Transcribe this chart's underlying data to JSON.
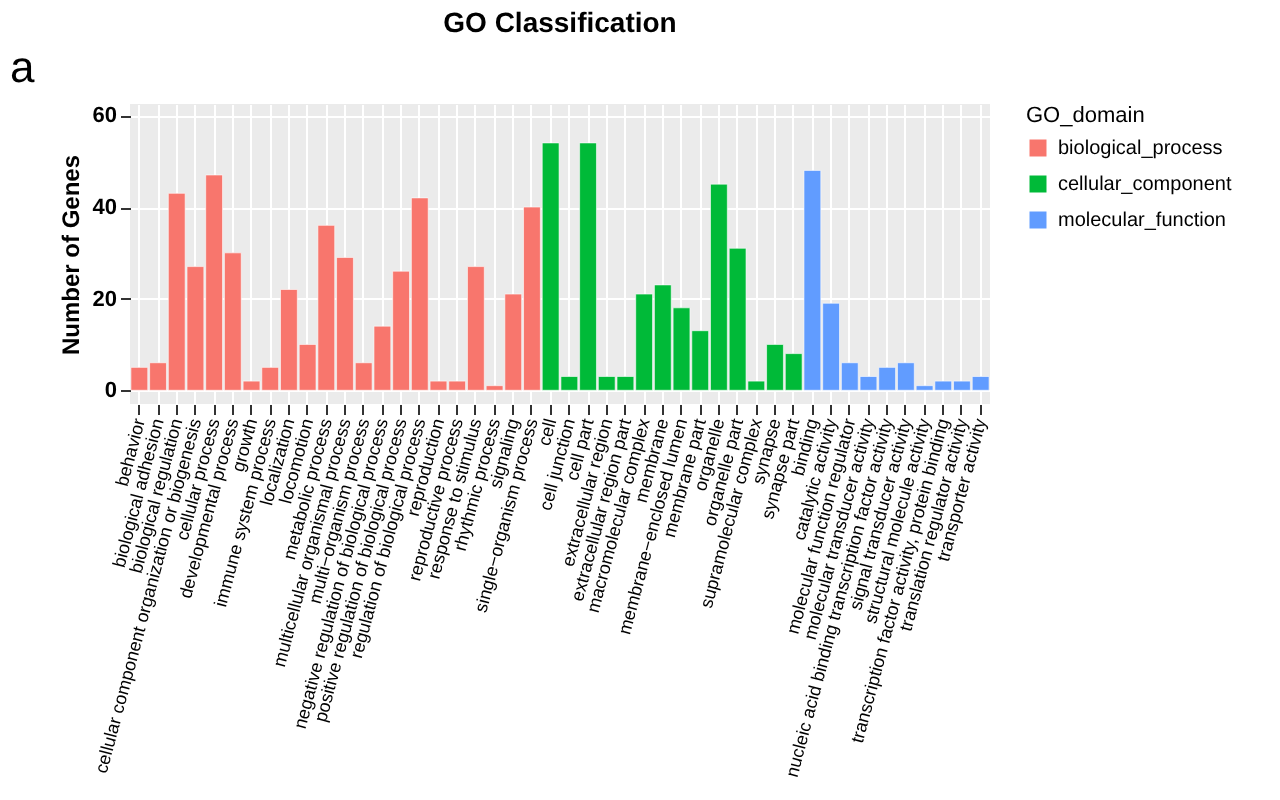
{
  "chart_data": {
    "type": "bar",
    "title": "GO Classification",
    "ylabel": "Number of Genes",
    "legend_title": "GO_domain",
    "annotations": [
      "a"
    ],
    "categories": [
      "behavior",
      "biological adhesion",
      "biological regulation",
      "cellular component organization or biogenesis",
      "cellular process",
      "developmental process",
      "growth",
      "immune system process",
      "localization",
      "locomotion",
      "metabolic process",
      "multicellular organismal process",
      "multi−organism process",
      "negative regulation of biological process",
      "positive regulation of biological process",
      "regulation of biological process",
      "reproduction",
      "reproductive process",
      "response to stimulus",
      "rhythmic process",
      "signaling",
      "single−organism process",
      "cell",
      "cell junction",
      "cell part",
      "extracellular region",
      "extracellular region part",
      "macromolecular complex",
      "membrane",
      "membrane−enclosed lumen",
      "membrane part",
      "organelle",
      "organelle part",
      "supramolecular complex",
      "synapse",
      "synapse part",
      "binding",
      "catalytic activity",
      "molecular function regulator",
      "molecular transducer activity",
      "nucleic acid binding transcription factor activity",
      "signal transducer activity",
      "structural molecule activity",
      "transcription factor activity, protein binding",
      "translation regulator activity",
      "transporter activity"
    ],
    "series": [
      {
        "name": "biological_process",
        "color": "#f8766d",
        "values": [
          5,
          6,
          43,
          27,
          47,
          30,
          2,
          5,
          22,
          10,
          36,
          29,
          6,
          14,
          26,
          42,
          2,
          2,
          27,
          1,
          21,
          40,
          null,
          null,
          null,
          null,
          null,
          null,
          null,
          null,
          null,
          null,
          null,
          null,
          null,
          null,
          null,
          null,
          null,
          null,
          null,
          null,
          null,
          null,
          null,
          null
        ]
      },
      {
        "name": "cellular_component",
        "color": "#00ba38",
        "values": [
          null,
          null,
          null,
          null,
          null,
          null,
          null,
          null,
          null,
          null,
          null,
          null,
          null,
          null,
          null,
          null,
          null,
          null,
          null,
          null,
          null,
          null,
          54,
          3,
          54,
          3,
          3,
          21,
          23,
          18,
          13,
          45,
          31,
          2,
          10,
          8,
          null,
          null,
          null,
          null,
          null,
          null,
          null,
          null,
          null,
          null
        ]
      },
      {
        "name": "molecular_function",
        "color": "#619cff",
        "values": [
          null,
          null,
          null,
          null,
          null,
          null,
          null,
          null,
          null,
          null,
          null,
          null,
          null,
          null,
          null,
          null,
          null,
          null,
          null,
          null,
          null,
          null,
          null,
          null,
          null,
          null,
          null,
          null,
          null,
          null,
          null,
          null,
          null,
          null,
          null,
          null,
          48,
          19,
          6,
          3,
          5,
          6,
          1,
          2,
          2,
          3
        ]
      }
    ],
    "ylim": [
      -3,
      62.5
    ],
    "yticks": [
      0,
      20,
      40,
      60
    ],
    "grid": true,
    "legend": "right"
  }
}
